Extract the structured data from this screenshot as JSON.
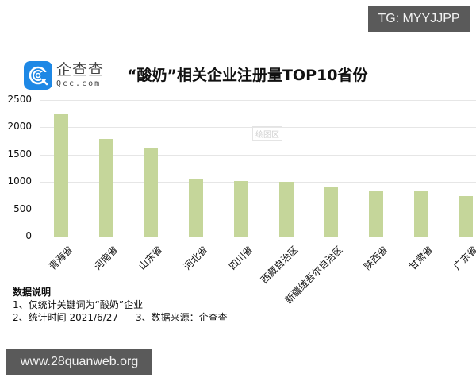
{
  "badges": {
    "top_right": "TG: MYYJJPP",
    "bottom_left": "www.28quanweb.org"
  },
  "logo": {
    "name_cn": "企查查",
    "name_en": "Qcc.com",
    "brand_color": "#1e88e5"
  },
  "watermark": "绘图区",
  "notes": {
    "title": "数据说明",
    "line1": "1、仅统计关键词为“酸奶”企业",
    "line2a": "2、统计时间 2021/6/27",
    "line2b": "3、数据来源：企查查"
  },
  "chart_data": {
    "type": "bar",
    "title": "“酸奶”相关企业注册量TOP10省份",
    "xlabel": "",
    "ylabel": "",
    "ylim": [
      0,
      2500
    ],
    "yticks": [
      0,
      500,
      1000,
      1500,
      2000,
      2500
    ],
    "grid": true,
    "legend": null,
    "bar_color": "#c5d69a",
    "categories": [
      "青海省",
      "河南省",
      "山东省",
      "河北省",
      "四川省",
      "西藏自治区",
      "新疆维吾尔自治区",
      "陕西省",
      "甘肃省",
      "广东省"
    ],
    "values": [
      2240,
      1790,
      1630,
      1065,
      1020,
      1000,
      920,
      850,
      845,
      745
    ]
  }
}
